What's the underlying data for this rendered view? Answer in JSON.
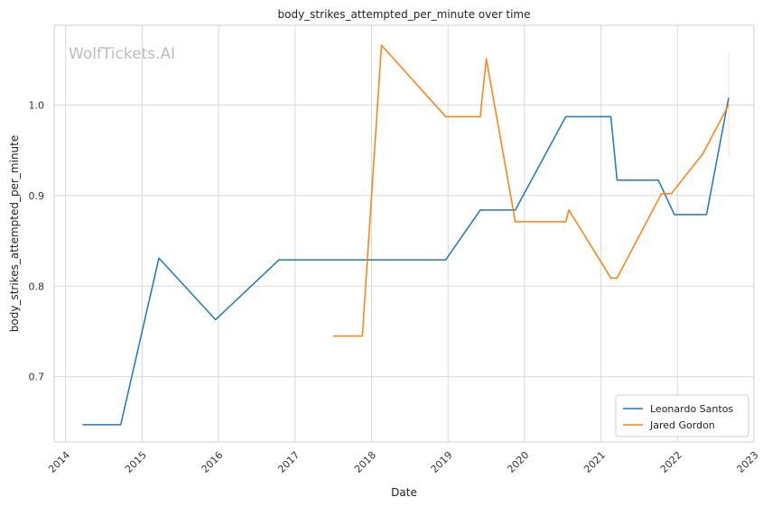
{
  "chart_data": {
    "type": "line",
    "title": "body_strikes_attempted_per_minute over time",
    "xlabel": "Date",
    "ylabel": "body_strikes_attempted_per_minute",
    "watermark": "WolfTickets.AI",
    "xlim": [
      2013.85,
      2023.0
    ],
    "ylim": [
      0.628,
      1.088
    ],
    "xticks": [
      {
        "value": 2014,
        "label": "2014"
      },
      {
        "value": 2015,
        "label": "2015"
      },
      {
        "value": 2016,
        "label": "2016"
      },
      {
        "value": 2017,
        "label": "2017"
      },
      {
        "value": 2018,
        "label": "2018"
      },
      {
        "value": 2019,
        "label": "2019"
      },
      {
        "value": 2020,
        "label": "2020"
      },
      {
        "value": 2021,
        "label": "2021"
      },
      {
        "value": 2022,
        "label": "2022"
      },
      {
        "value": 2023,
        "label": "2023"
      }
    ],
    "yticks": [
      {
        "value": 0.7,
        "label": "0.7"
      },
      {
        "value": 0.8,
        "label": "0.8"
      },
      {
        "value": 0.9,
        "label": "0.9"
      },
      {
        "value": 1.0,
        "label": "1.0"
      }
    ],
    "grid": true,
    "legend_position": "bottom-right",
    "series": [
      {
        "name": "Leonardo Santos",
        "color": "#1f77b4",
        "points": [
          {
            "x": 2014.22,
            "y": 0.647
          },
          {
            "x": 2014.72,
            "y": 0.647
          },
          {
            "x": 2015.22,
            "y": 0.831
          },
          {
            "x": 2015.96,
            "y": 0.763
          },
          {
            "x": 2016.79,
            "y": 0.829
          },
          {
            "x": 2018.97,
            "y": 0.829
          },
          {
            "x": 2019.42,
            "y": 0.884
          },
          {
            "x": 2019.88,
            "y": 0.884
          },
          {
            "x": 2020.54,
            "y": 0.987
          },
          {
            "x": 2021.13,
            "y": 0.987
          },
          {
            "x": 2021.21,
            "y": 0.917
          },
          {
            "x": 2021.75,
            "y": 0.917
          },
          {
            "x": 2021.96,
            "y": 0.879
          },
          {
            "x": 2022.38,
            "y": 0.879
          },
          {
            "x": 2022.67,
            "y": 1.008
          }
        ]
      },
      {
        "name": "Jared Gordon",
        "color": "#ff7f0e",
        "points": [
          {
            "x": 2017.5,
            "y": 0.745
          },
          {
            "x": 2017.88,
            "y": 0.745
          },
          {
            "x": 2018.13,
            "y": 1.066
          },
          {
            "x": 2018.97,
            "y": 0.987
          },
          {
            "x": 2019.42,
            "y": 0.987
          },
          {
            "x": 2019.5,
            "y": 1.051
          },
          {
            "x": 2019.88,
            "y": 0.871
          },
          {
            "x": 2020.54,
            "y": 0.871
          },
          {
            "x": 2020.58,
            "y": 0.884
          },
          {
            "x": 2021.13,
            "y": 0.809
          },
          {
            "x": 2021.21,
            "y": 0.809
          },
          {
            "x": 2021.79,
            "y": 0.902
          },
          {
            "x": 2021.92,
            "y": 0.902
          },
          {
            "x": 2022.33,
            "y": 0.946
          },
          {
            "x": 2022.67,
            "y": 1.0
          }
        ],
        "error_band": {
          "x": 2022.67,
          "low": 0.944,
          "high": 1.056
        }
      }
    ]
  }
}
